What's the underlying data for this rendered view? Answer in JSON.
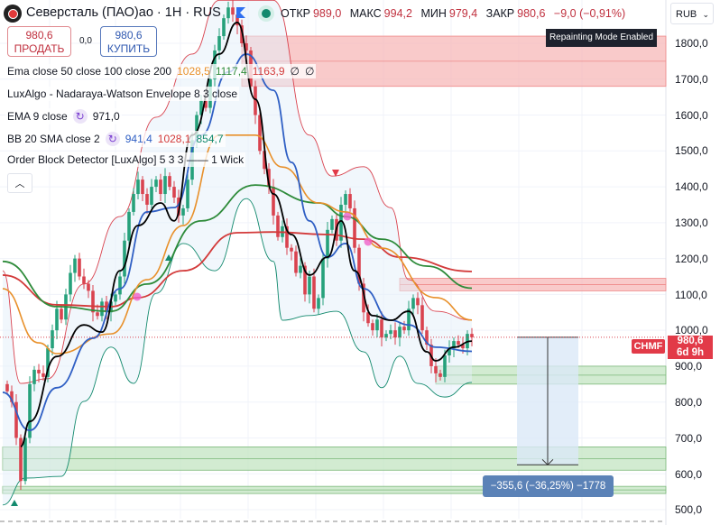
{
  "header": {
    "title": "Северсталь (ПАО)ао · 1H · RUS",
    "open_label": "ОТКР",
    "open": "989,0",
    "high_label": "МАКС",
    "high": "994,2",
    "low_label": "МИН",
    "low": "979,4",
    "close_label": "ЗАКР",
    "close": "980,6",
    "change": "−9,0 (−0,91%)",
    "repainting_notice": "Repainting Mode Enabled",
    "currency": "RUB"
  },
  "trade": {
    "sell_price": "980,6",
    "sell_label": "ПРОДАТЬ",
    "spread": "0,0",
    "buy_price": "980,6",
    "buy_label": "КУПИТЬ"
  },
  "indicators": [
    {
      "name": "Ema close 50 close 100 close 200",
      "values": [
        "1028,5",
        "1117,4",
        "1163,9",
        "∅",
        "∅"
      ],
      "colors": [
        "#e8902a",
        "#2e8b3a",
        "#d33a3a",
        "#131722",
        "#131722"
      ]
    },
    {
      "name": "LuxAlgo - Nadaraya-Watson Envelope 8 3 close",
      "values": [],
      "colors": []
    },
    {
      "name": "EMA 9 close",
      "values": [
        "971,0"
      ],
      "colors": [
        "#131722"
      ]
    },
    {
      "name": "BB 20 SMA close 2",
      "values": [
        "941,4",
        "1028,1",
        "854,7"
      ],
      "colors": [
        "#2f5fc4",
        "#d33a3a",
        "#138a6e"
      ]
    },
    {
      "name": "Order Block Detector [LuxAlgo] 5 3 3 —— 1 Wick",
      "values": [],
      "colors": []
    }
  ],
  "price_axis": {
    "ticks": [
      "1800,0",
      "1700,0",
      "1600,0",
      "1500,0",
      "1400,0",
      "1300,0",
      "1200,0",
      "1100,0",
      "1000,0",
      "900,0",
      "800,0",
      "700,0",
      "600,0",
      "500,0"
    ]
  },
  "last_price": {
    "symbol": "CHMF",
    "price": "980,6",
    "countdown": "6d 9h"
  },
  "measure": {
    "label": "−355,6 (−36,25%) −1778"
  },
  "colors": {
    "up": "#26a17b",
    "down": "#d9434f",
    "ema9": "#000000",
    "basis": "#2f5fc4",
    "ema50": "#e8902a",
    "ema100": "#2e8b3a",
    "ema200": "#d33a3a",
    "bear_ob": "#f7b4b4",
    "bull_ob": "#bfe2bd"
  },
  "chart_data": {
    "type": "candlestick",
    "ylim": [
      480,
      1900
    ],
    "closes": [
      830,
      800,
      700,
      580,
      700,
      850,
      890,
      880,
      870,
      950,
      1000,
      1060,
      1030,
      1100,
      1160,
      1200,
      1150,
      1130,
      1110,
      1050,
      1040,
      1080,
      1050,
      1080,
      1100,
      1150,
      1250,
      1330,
      1380,
      1420,
      1380,
      1350,
      1400,
      1420,
      1380,
      1430,
      1400,
      1370,
      1320,
      1340,
      1420,
      1530,
      1600,
      1640,
      1620,
      1700,
      1780,
      1820,
      1870,
      1900,
      1880,
      1850,
      1800,
      1780,
      1680,
      1600,
      1500,
      1450,
      1400,
      1320,
      1260,
      1290,
      1230,
      1220,
      1160,
      1180,
      1100,
      1150,
      1060,
      1090,
      1200,
      1280,
      1310,
      1250,
      1350,
      1380,
      1340,
      1230,
      1130,
      1050,
      1020,
      1000,
      1030,
      980,
      990,
      1000,
      980,
      1010,
      1000,
      1060,
      1090,
      1070,
      1000,
      960,
      900,
      880,
      870,
      930,
      950,
      970,
      960,
      950,
      990,
      980.6
    ],
    "ema9": [
      [
        3,
        676
      ],
      [
        5,
        746
      ],
      [
        11,
        927
      ],
      [
        17,
        1015
      ],
      [
        21,
        995
      ],
      [
        25,
        1166
      ],
      [
        29,
        1292
      ],
      [
        34,
        1355
      ],
      [
        37,
        1305
      ],
      [
        41,
        1544
      ],
      [
        47,
        1770
      ],
      [
        51,
        1858
      ],
      [
        55,
        1644
      ],
      [
        59,
        1380
      ],
      [
        63,
        1267
      ],
      [
        67,
        1154
      ],
      [
        71,
        1204
      ],
      [
        74,
        1305
      ],
      [
        77,
        1166
      ],
      [
        81,
        1041
      ],
      [
        85,
        1028
      ],
      [
        89,
        1053
      ],
      [
        93,
        940
      ],
      [
        95,
        915
      ],
      [
        99,
        953
      ],
      [
        103,
        970
      ]
    ],
    "bb_basis": [
      [
        -1,
        827
      ],
      [
        5,
        721
      ],
      [
        11,
        840
      ],
      [
        19,
        978
      ],
      [
        25,
        1116
      ],
      [
        31,
        1330
      ],
      [
        37,
        1342
      ],
      [
        43,
        1544
      ],
      [
        49,
        1720
      ],
      [
        53,
        1770
      ],
      [
        59,
        1669
      ],
      [
        63,
        1468
      ],
      [
        67,
        1305
      ],
      [
        71,
        1204
      ],
      [
        75,
        1242
      ],
      [
        79,
        1116
      ],
      [
        85,
        1028
      ],
      [
        89,
        1015
      ],
      [
        95,
        953
      ],
      [
        103,
        941.4
      ]
    ],
    "bb_upper": [
      [
        -1,
        1166
      ],
      [
        3,
        852
      ],
      [
        9,
        865
      ],
      [
        17,
        1129
      ],
      [
        25,
        1317
      ],
      [
        33,
        1594
      ],
      [
        41,
        1770
      ],
      [
        47,
        1920
      ],
      [
        59,
        1920
      ],
      [
        67,
        1544
      ],
      [
        72,
        1430
      ],
      [
        79,
        1456
      ],
      [
        85,
        1342
      ],
      [
        89,
        1141
      ],
      [
        95,
        1053
      ],
      [
        103,
        1028.1
      ]
    ],
    "bb_lower": [
      [
        -1,
        513
      ],
      [
        4,
        588
      ],
      [
        12,
        593
      ],
      [
        17,
        802
      ],
      [
        23,
        953
      ],
      [
        28,
        852
      ],
      [
        33,
        1103
      ],
      [
        39,
        1242
      ],
      [
        46,
        1166
      ],
      [
        53,
        1367
      ],
      [
        59,
        1192
      ],
      [
        61,
        1028
      ],
      [
        67,
        1041
      ],
      [
        73,
        1053
      ],
      [
        79,
        940
      ],
      [
        83,
        840
      ],
      [
        87,
        928
      ],
      [
        91,
        852
      ],
      [
        97,
        814
      ],
      [
        103,
        854.7
      ]
    ],
    "ema50": [
      [
        -1,
        1116
      ],
      [
        7,
        965
      ],
      [
        11,
        935
      ],
      [
        23,
        990
      ],
      [
        31,
        1141
      ],
      [
        39,
        1292
      ],
      [
        47,
        1544
      ],
      [
        55,
        1544
      ],
      [
        61,
        1455
      ],
      [
        69,
        1355
      ],
      [
        75,
        1330
      ],
      [
        83,
        1229
      ],
      [
        95,
        1091
      ],
      [
        103,
        1028.5
      ]
    ],
    "ema100": [
      [
        -1,
        1192
      ],
      [
        11,
        1066
      ],
      [
        23,
        1053
      ],
      [
        31,
        1129
      ],
      [
        43,
        1305
      ],
      [
        55,
        1405
      ],
      [
        69,
        1355
      ],
      [
        75,
        1317
      ],
      [
        83,
        1254
      ],
      [
        93,
        1179
      ],
      [
        103,
        1117.4
      ]
    ],
    "ema200": [
      [
        -1,
        1154
      ],
      [
        11,
        1071
      ],
      [
        23,
        1066
      ],
      [
        29,
        1091
      ],
      [
        39,
        1166
      ],
      [
        51,
        1272
      ],
      [
        59,
        1274
      ],
      [
        71,
        1267
      ],
      [
        79,
        1254
      ],
      [
        87,
        1204
      ],
      [
        103,
        1163.9
      ]
    ],
    "order_blocks": [
      {
        "type": "bearish",
        "top": 1820,
        "bottom": 1680,
        "start": 52
      },
      {
        "type": "bearish",
        "top": 1145,
        "bottom": 1110,
        "start": 87
      },
      {
        "type": "bullish",
        "top": 900,
        "bottom": 850,
        "start": 95
      },
      {
        "type": "bullish",
        "top": 675,
        "bottom": 610,
        "start": -1
      },
      {
        "type": "bullish",
        "top": 565,
        "bottom": 545,
        "start": -1
      }
    ],
    "measure": {
      "from": 980.6,
      "to": 625,
      "change": -355.6,
      "percent": -36.25,
      "bars": -1778
    }
  }
}
